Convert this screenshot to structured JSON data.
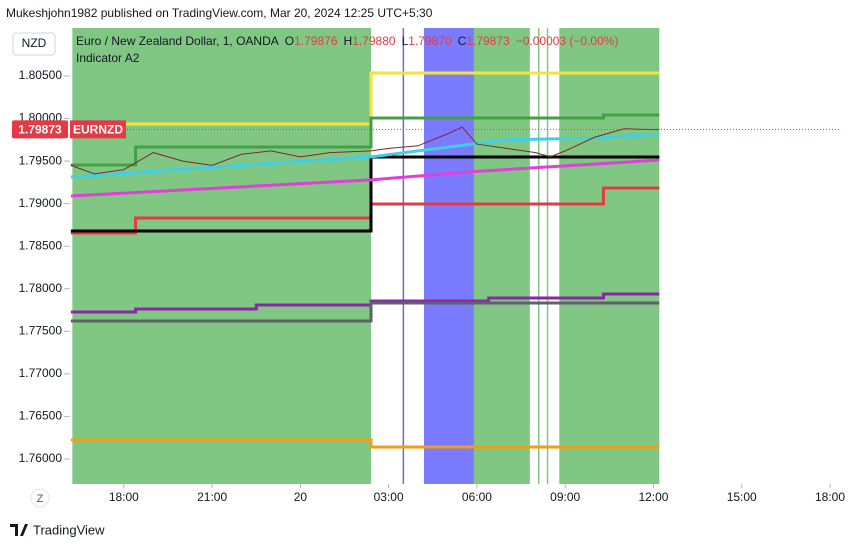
{
  "header": {
    "published": "Mukeshjohn1982 published on TradingView.com, Mar 20, 2024 12:25 UTC+5:30",
    "currency": "NZD",
    "tz_button": "Z",
    "brand": "TradingView"
  },
  "chart_data": {
    "type": "line",
    "legend": {
      "instrument": "Euro / New Zealand Dollar, 1, OANDA",
      "o_label": "O",
      "open": "1.79876",
      "h_label": "H",
      "high": "1.79880",
      "l_label": "L",
      "low": "1.79870",
      "c_label": "C",
      "close": "1.79873",
      "change": "−0.00003 (−0.00%)",
      "indicator": "Indicator A2"
    },
    "last_price": 1.79873,
    "symbol": "EURNZD",
    "xlim": [
      16.17,
      42.34
    ],
    "ylim": [
      1.75706,
      1.81064
    ],
    "xticks": [
      {
        "value": 18,
        "label": "18:00"
      },
      {
        "value": 21,
        "label": "21:00"
      },
      {
        "value": 24,
        "label": "20"
      },
      {
        "value": 27,
        "label": "03:00"
      },
      {
        "value": 30,
        "label": "06:00"
      },
      {
        "value": 33,
        "label": "09:00"
      },
      {
        "value": 36,
        "label": "12:00"
      },
      {
        "value": 39,
        "label": "15:00"
      },
      {
        "value": 42,
        "label": "18:00"
      }
    ],
    "yticks": [
      {
        "value": 1.76,
        "label": "1.76000"
      },
      {
        "value": 1.765,
        "label": "1.76500"
      },
      {
        "value": 1.77,
        "label": "1.77000"
      },
      {
        "value": 1.775,
        "label": "1.77500"
      },
      {
        "value": 1.78,
        "label": "1.78000"
      },
      {
        "value": 1.785,
        "label": "1.78500"
      },
      {
        "value": 1.79,
        "label": "1.79000"
      },
      {
        "value": 1.795,
        "label": "1.79500"
      },
      {
        "value": 1.8,
        "label": "1.80000"
      },
      {
        "value": 1.805,
        "label": "1.80500"
      }
    ],
    "shaded_regions": [
      {
        "from": 16.25,
        "to": 26.4,
        "color": "#81c784"
      },
      {
        "from": 28.2,
        "to": 29.9,
        "color": "#7b7bff"
      },
      {
        "from": 29.9,
        "to": 31.8,
        "color": "#81c784"
      },
      {
        "from": 32.8,
        "to": 36.2,
        "color": "#81c784"
      }
    ],
    "vlines": [
      {
        "x": 27.5,
        "color": "#6a6ad8"
      },
      {
        "x": 31.3,
        "color": "#81c784"
      },
      {
        "x": 32.1,
        "color": "#81c784"
      },
      {
        "x": 32.4,
        "color": "#81c784"
      }
    ],
    "series": [
      {
        "color": "#f5e33a",
        "step": true,
        "width": 3,
        "x": [
          16.2,
          26.4,
          36.2
        ],
        "values": [
          1.79936,
          1.80535,
          1.80535
        ]
      },
      {
        "color": "#43a047",
        "step": true,
        "width": 3,
        "x": [
          16.2,
          18.4,
          26.4,
          34.3,
          36.2
        ],
        "values": [
          1.79454,
          1.79666,
          1.80006,
          1.80042,
          1.80042
        ]
      },
      {
        "color": "#e53945",
        "step": true,
        "width": 3,
        "x": [
          16.2,
          18.4,
          26.4,
          34.3,
          36.2
        ],
        "values": [
          1.78655,
          1.78832,
          1.78996,
          1.79184,
          1.79184
        ]
      },
      {
        "color": "#000000",
        "step": true,
        "width": 3,
        "x": [
          16.2,
          26.4,
          36.2
        ],
        "values": [
          1.78679,
          1.79548,
          1.79548
        ]
      },
      {
        "color": "#8e24aa",
        "step": true,
        "width": 3,
        "x": [
          16.2,
          18.4,
          22.5,
          26.4,
          30.4,
          34.3,
          36.2
        ],
        "values": [
          1.77727,
          1.77762,
          1.77809,
          1.77856,
          1.77892,
          1.77939,
          1.77939
        ]
      },
      {
        "color": "#5f6368",
        "step": true,
        "width": 3,
        "x": [
          16.2,
          26.4,
          36.2
        ],
        "values": [
          1.77621,
          1.77833,
          1.77833
        ]
      },
      {
        "color": "#f59c10",
        "step": true,
        "width": 3,
        "x": [
          16.2,
          26.4,
          36.2
        ],
        "values": [
          1.76223,
          1.76141,
          1.76141
        ]
      },
      {
        "color": "#e040d8",
        "step": false,
        "width": 3,
        "x": [
          16.2,
          26.4,
          30,
          36.2
        ],
        "values": [
          1.7909,
          1.7928,
          1.7938,
          1.79513
        ]
      },
      {
        "color": "#3fd0e8",
        "step": false,
        "width": 3,
        "x": [
          16.2,
          22,
          26.4,
          28,
          31,
          34,
          36.2
        ],
        "values": [
          1.79313,
          1.7945,
          1.7955,
          1.7962,
          1.7975,
          1.7977,
          1.7982
        ]
      },
      {
        "color": "#7a2a2a",
        "step": false,
        "width": 1,
        "x": [
          16.2,
          17,
          18,
          19,
          20,
          21,
          22,
          23,
          24,
          25,
          26.4,
          27,
          28,
          29,
          29.5,
          30,
          31,
          32,
          32.5,
          33,
          34,
          35,
          36,
          36.2
        ],
        "values": [
          1.7945,
          1.7935,
          1.794,
          1.796,
          1.795,
          1.7945,
          1.7958,
          1.7962,
          1.7955,
          1.796,
          1.7962,
          1.7965,
          1.7968,
          1.7982,
          1.799,
          1.797,
          1.7965,
          1.796,
          1.7955,
          1.7962,
          1.7978,
          1.7988,
          1.7987,
          1.79873
        ]
      }
    ]
  }
}
